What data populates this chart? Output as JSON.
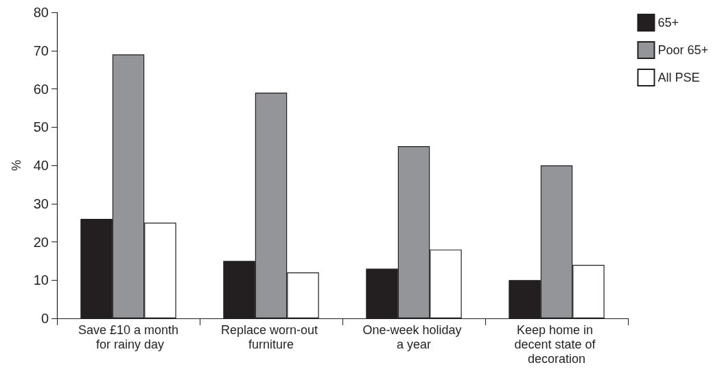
{
  "chart_data": {
    "type": "bar",
    "ylabel": "%",
    "categories": [
      "Save £10 a month for rainy day",
      "Replace worn-out furniture",
      "One-week holiday a year",
      "Keep home in decent state of decoration"
    ],
    "series": [
      {
        "name": "65+",
        "color": "#231f20",
        "values": [
          26,
          15,
          13,
          10
        ]
      },
      {
        "name": "Poor 65+",
        "color": "#939598",
        "values": [
          69,
          59,
          45,
          40
        ]
      },
      {
        "name": "All PSE",
        "color": "#ffffff",
        "values": [
          25,
          12,
          18,
          14
        ]
      }
    ],
    "ylim": [
      0,
      80
    ],
    "yticks": [
      0,
      10,
      20,
      30,
      40,
      50,
      60,
      70,
      80
    ],
    "grid": false,
    "legend": "top right"
  }
}
